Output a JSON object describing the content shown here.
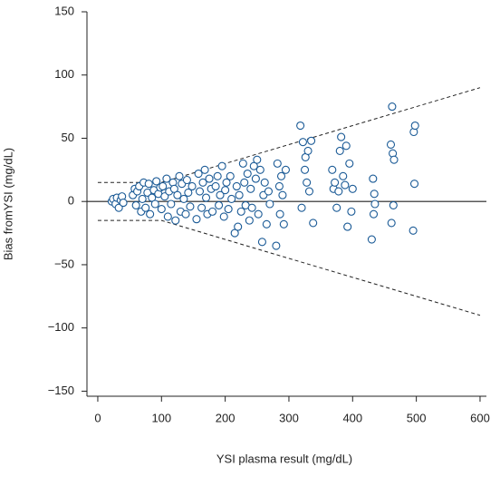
{
  "chart_data": {
    "type": "scatter",
    "x_label": "YSI plasma result (mg/dL)",
    "y_label": "Bias fromYSI (mg/dL)",
    "xlim": [
      -17,
      610
    ],
    "ylim": [
      -154,
      150
    ],
    "xticks": [
      0,
      100,
      200,
      300,
      400,
      500,
      600
    ],
    "yticks": [
      {
        "value": -150,
        "label": "−150"
      },
      {
        "value": -100,
        "label": "−100"
      },
      {
        "value": -50,
        "label": "−50"
      },
      0,
      50,
      100,
      150
    ],
    "zero_line": 0,
    "limits": {
      "x": [
        0,
        100,
        600
      ],
      "upper": [
        15,
        15,
        90
      ],
      "lower": [
        -15,
        -15,
        -90
      ]
    },
    "series": [
      {
        "color": "#1a5a96",
        "x": [
          22,
          24,
          28,
          30,
          33,
          36,
          38,
          40,
          55,
          58,
          60,
          62,
          65,
          68,
          70,
          72,
          75,
          78,
          80,
          82,
          85,
          88,
          90,
          92,
          95,
          98,
          100,
          102,
          105,
          108,
          110,
          112,
          115,
          118,
          120,
          122,
          125,
          128,
          130,
          132,
          135,
          138,
          140,
          142,
          145,
          148,
          155,
          158,
          160,
          163,
          165,
          168,
          170,
          172,
          175,
          178,
          180,
          185,
          188,
          190,
          192,
          195,
          198,
          200,
          202,
          205,
          208,
          210,
          215,
          218,
          220,
          222,
          225,
          228,
          230,
          232,
          235,
          238,
          240,
          242,
          245,
          248,
          250,
          252,
          255,
          258,
          260,
          262,
          265,
          268,
          270,
          280,
          282,
          285,
          286,
          288,
          290,
          292,
          295,
          318,
          320,
          322,
          325,
          326,
          328,
          330,
          332,
          335,
          338,
          368,
          370,
          372,
          375,
          378,
          380,
          382,
          385,
          388,
          390,
          392,
          395,
          398,
          400,
          430,
          432,
          433,
          434,
          435,
          460,
          461,
          462,
          463,
          464,
          465,
          495,
          496,
          497,
          498
        ],
        "values": [
          0,
          2,
          -2,
          3,
          -5,
          1,
          4,
          -1,
          5,
          10,
          -3,
          8,
          12,
          -8,
          2,
          15,
          -5,
          7,
          14,
          -10,
          3,
          9,
          -2,
          16,
          6,
          11,
          -6,
          12,
          4,
          18,
          -12,
          8,
          -2,
          15,
          10,
          -15,
          5,
          20,
          -8,
          14,
          2,
          -10,
          17,
          7,
          -4,
          12,
          -14,
          22,
          8,
          -5,
          15,
          25,
          3,
          -10,
          18,
          10,
          -8,
          12,
          20,
          -3,
          5,
          28,
          -12,
          9,
          15,
          -6,
          20,
          2,
          -25,
          12,
          -20,
          5,
          -8,
          30,
          15,
          -3,
          22,
          -15,
          10,
          -5,
          28,
          18,
          33,
          -10,
          25,
          -32,
          5,
          15,
          -18,
          8,
          -2,
          -35,
          30,
          12,
          -10,
          20,
          5,
          -18,
          25,
          60,
          -5,
          47,
          25,
          35,
          15,
          40,
          8,
          48,
          -17,
          25,
          10,
          15,
          -5,
          8,
          40,
          51,
          20,
          13,
          44,
          -20,
          30,
          -8,
          10,
          -30,
          18,
          -10,
          6,
          -2,
          45,
          -17,
          75,
          38,
          -3,
          33,
          -23,
          55,
          14,
          60
        ]
      }
    ]
  }
}
